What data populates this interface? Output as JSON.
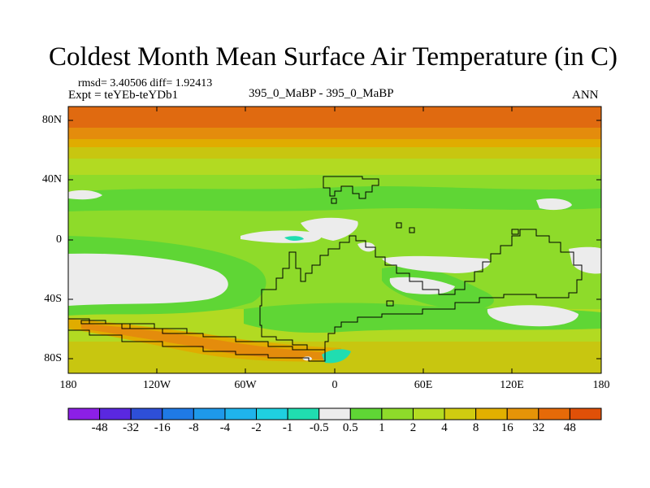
{
  "title": "Coldest Month Mean Surface Air Temperature (in C)",
  "stats": "rmsd= 3.40506  diff= 1.92413",
  "experiment": "Expt = teYEb-teYDb1",
  "comparison": "395_0_MaBP - 395_0_MaBP",
  "season": "ANN",
  "lat_labels": [
    "80N",
    "40N",
    "0",
    "40S",
    "80S"
  ],
  "lon_labels": [
    "180",
    "120W",
    "60W",
    "0",
    "60E",
    "120E",
    "180"
  ],
  "colorbar": {
    "labels": [
      "-48",
      "-32",
      "-16",
      "-8",
      "-4",
      "-2",
      "-1",
      "-0.5",
      "0.5",
      "1",
      "2",
      "4",
      "8",
      "16",
      "32",
      "48"
    ],
    "colors": [
      "#8c1fe6",
      "#5a28e0",
      "#2e4fd8",
      "#1f7ae6",
      "#1e99ea",
      "#1fb4ec",
      "#1fd0e0",
      "#20ddb0",
      "#ececec",
      "#5fd635",
      "#8edb2a",
      "#b4dc22",
      "#d0cc10",
      "#e2b000",
      "#e69408",
      "#e66a08",
      "#e05008"
    ]
  },
  "palette": {
    "orange_dark": "#e06a10",
    "orange": "#e48c0c",
    "amber": "#e0ac00",
    "yellow_olive": "#c8c610",
    "yellow_green": "#b2da22",
    "light_green": "#8edb2a",
    "green": "#5fd635",
    "white": "#ececec",
    "cyan": "#20ddb0"
  }
}
